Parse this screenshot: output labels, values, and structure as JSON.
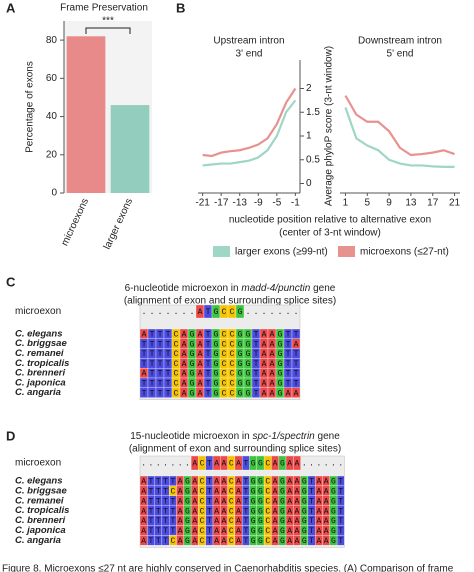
{
  "chart_data": [
    {
      "type": "bar",
      "panel": "A",
      "title": "Frame Preservation",
      "categories": [
        "microexons",
        "larger exons"
      ],
      "values": [
        82,
        46
      ],
      "colors": [
        "#e8898a",
        "#92cdbd"
      ],
      "ylabel": "Percentage of exons",
      "ylim": [
        0,
        90
      ],
      "yticks": [
        0,
        20,
        40,
        60,
        80
      ],
      "annotation": "***"
    },
    {
      "type": "line",
      "panel": "B",
      "ylabel": "Average phyloP score (3-nt window)",
      "xlabel": [
        "nucleotide position relative to alternative exon",
        "(center of 3-nt window)"
      ],
      "ylim": [
        -0.2,
        2.6
      ],
      "yticks": [
        0,
        0.5,
        1,
        1.5,
        2
      ],
      "series": [
        {
          "name": "larger exons (≥99-nt)",
          "color": "#9fd6c6"
        },
        {
          "name": "microexons (≤27-nt)",
          "color": "#e8928f"
        }
      ],
      "panels": [
        {
          "title": "Upstream intron",
          "subtitle": "3' end",
          "x": [
            -21,
            -19,
            -17,
            -15,
            -13,
            -11,
            -9,
            -7,
            -5,
            -3,
            -1
          ],
          "xlim": [
            -22,
            0
          ],
          "xticks": [
            -21,
            -17,
            -13,
            -9,
            -5,
            -1
          ],
          "values": [
            [
              0.38,
              0.4,
              0.42,
              0.42,
              0.45,
              0.48,
              0.55,
              0.7,
              1.0,
              1.5,
              1.75
            ],
            [
              0.6,
              0.58,
              0.65,
              0.68,
              0.7,
              0.75,
              0.82,
              0.95,
              1.25,
              1.7,
              2.0
            ]
          ]
        },
        {
          "title": "Downstream intron",
          "subtitle": "5' end",
          "x": [
            1,
            3,
            5,
            7,
            9,
            11,
            13,
            15,
            17,
            19,
            21
          ],
          "xlim": [
            0,
            22
          ],
          "xticks": [
            1,
            5,
            9,
            13,
            17,
            21
          ],
          "values": [
            [
              1.6,
              0.95,
              0.8,
              0.7,
              0.5,
              0.42,
              0.38,
              0.38,
              0.36,
              0.35,
              0.35
            ],
            [
              1.85,
              1.45,
              1.3,
              1.3,
              1.1,
              0.75,
              0.6,
              0.62,
              0.65,
              0.7,
              0.62
            ]
          ]
        }
      ]
    }
  ],
  "base_colors": {
    "A": "#ec4a4a",
    "T": "#4c4ce0",
    "C": "#f5c400",
    "G": "#3fc43f"
  },
  "alignments": [
    {
      "panel": "C",
      "title": [
        "6-nucleotide microexon in ",
        "madd-4/punctin",
        " gene"
      ],
      "subtitle": "(alignment of exon and surrounding splice sites)",
      "microexon_label": "microexon",
      "microexon": ".......ATGCCG.......",
      "rows": [
        {
          "species": "C. elegans",
          "sequence": "ATTTCAGATGCCGGTAAGTT"
        },
        {
          "species": "C. briggsae",
          "sequence": "TTTTCAGATGCCGGTAAGTA"
        },
        {
          "species": "C. remanei",
          "sequence": "TTTTCAGATGCCGGTAAGTT"
        },
        {
          "species": "C. tropicalis",
          "sequence": "TTTTCAGATGCCGGTAAGTT"
        },
        {
          "species": "C. brenneri",
          "sequence": "ATTTCAGATGCCGGTAAGTT"
        },
        {
          "species": "C. japonica",
          "sequence": "TTTTCAGATGCCGGTAAGTT"
        },
        {
          "species": "C. angaria",
          "sequence": "TTTTCAGATGCCGGTAAGAA"
        }
      ]
    },
    {
      "panel": "D",
      "title": [
        "15-nucleotide microexon in ",
        "spc-1/spectrin",
        " gene"
      ],
      "subtitle": "(alignment of exon and surrounding splice sites)",
      "microexon_label": "microexon",
      "microexon": ".......ACTAACATGGCAGAA......",
      "rows": [
        {
          "species": "C. elegans",
          "sequence": "ATTTTAGACTAACATGGCAGAAGTAAGT"
        },
        {
          "species": "C. briggsae",
          "sequence": "ATTTCAGACTAACATGGCAGAAGTAAGT"
        },
        {
          "species": "C. remanei",
          "sequence": "ATTTTAGACTAACATGGCAGAAGTAAGT"
        },
        {
          "species": "C. tropicalis",
          "sequence": "ATTTTAGACTAACATGGCAGAAGTAAGT"
        },
        {
          "species": "C. brenneri",
          "sequence": "ATTTTAGACTAACATGGCAGAAGTAAGT"
        },
        {
          "species": "C. japonica",
          "sequence": "ATTTTAGACTAACATGGCAGAAGTAAGT"
        },
        {
          "species": "C. angaria",
          "sequence": "ATTTCAGACTAACATGGCAGAAGTAAGT"
        }
      ]
    }
  ],
  "caption": "Figure 8.  Microexons ≤27 nt are highly conserved in Caenorhabditis species. (A) Comparison of frame"
}
